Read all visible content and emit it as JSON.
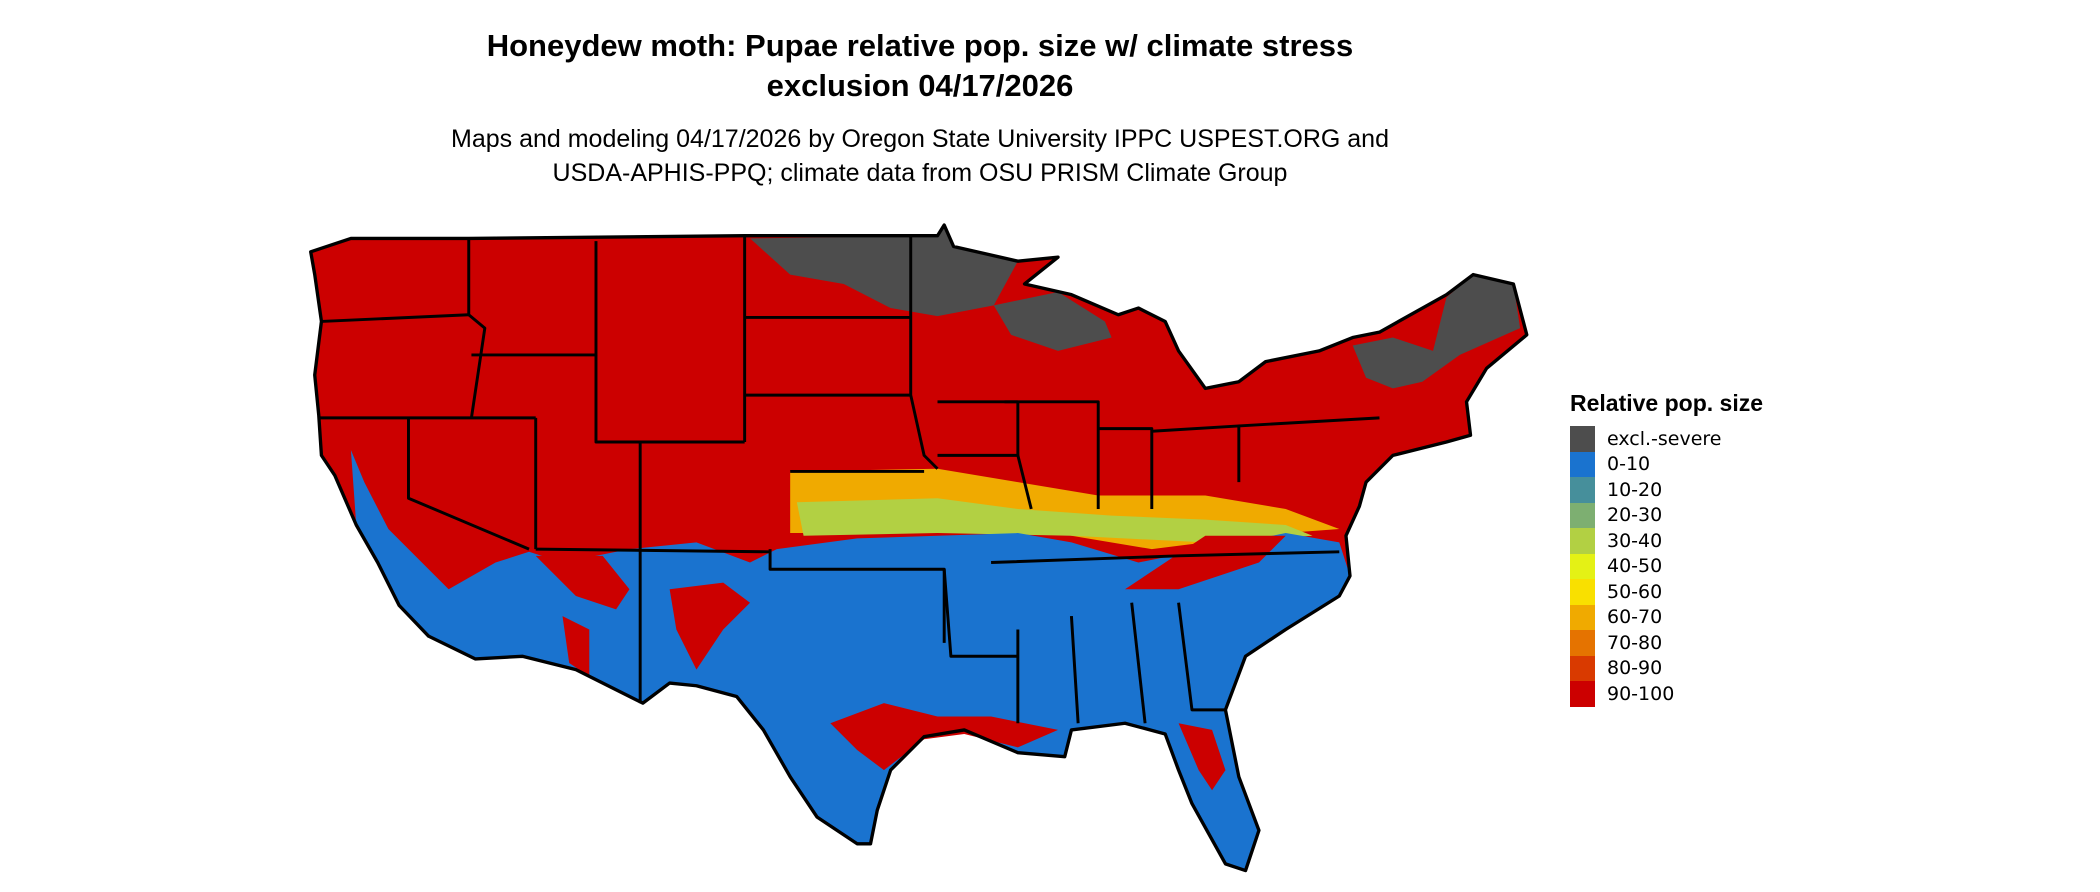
{
  "title_line1": "Honeydew moth: Pupae relative pop. size w/ climate stress",
  "title_line2": "exclusion 04/17/2026",
  "subtitle_line1": "Maps and modeling 04/17/2026 by Oregon State University IPPC USPEST.ORG and",
  "subtitle_line2": "USDA-APHIS-PPQ; climate data from OSU PRISM Climate Group",
  "legend": {
    "title": "Relative pop. size",
    "items": [
      {
        "label": "excl.-severe",
        "color": "#4d4d4d"
      },
      {
        "label": "0-10",
        "color": "#1a73cf"
      },
      {
        "label": "10-20",
        "color": "#468f9b"
      },
      {
        "label": "20-30",
        "color": "#7daf71"
      },
      {
        "label": "30-40",
        "color": "#b2d043"
      },
      {
        "label": "40-50",
        "color": "#e4f115"
      },
      {
        "label": "50-60",
        "color": "#f9e000"
      },
      {
        "label": "60-70",
        "color": "#f0aa00"
      },
      {
        "label": "70-80",
        "color": "#e57300"
      },
      {
        "label": "80-90",
        "color": "#d93a00"
      },
      {
        "label": "90-100",
        "color": "#cc0000"
      }
    ]
  }
}
